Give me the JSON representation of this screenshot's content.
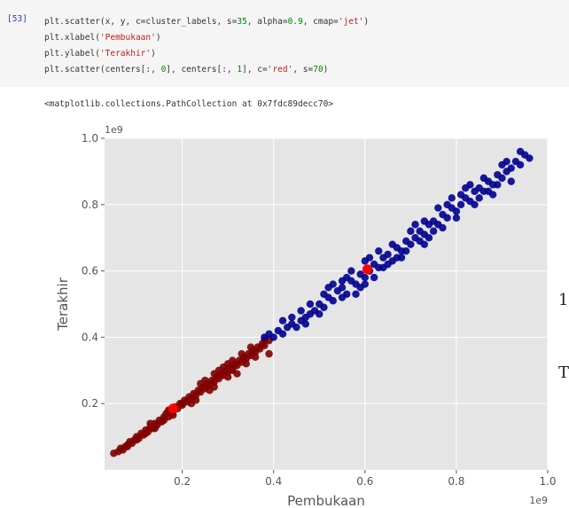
{
  "cell": {
    "prompt": "[53]",
    "lines": [
      [
        {
          "t": "plt.scatter(x, y, c=cluster_labels, s="
        },
        {
          "t": "35",
          "c": "num"
        },
        {
          "t": ", alpha="
        },
        {
          "t": "0.9",
          "c": "num"
        },
        {
          "t": ", cmap="
        },
        {
          "t": "'jet'",
          "c": "str"
        },
        {
          "t": ")"
        }
      ],
      [
        {
          "t": "plt.xlabel("
        },
        {
          "t": "'Pembukaan'",
          "c": "str"
        },
        {
          "t": ")"
        }
      ],
      [
        {
          "t": "plt.ylabel("
        },
        {
          "t": "'Terakhir'",
          "c": "str"
        },
        {
          "t": ")"
        }
      ],
      [
        {
          "t": "plt.scatter(centers[:, "
        },
        {
          "t": "0",
          "c": "num"
        },
        {
          "t": "], centers[:, "
        },
        {
          "t": "1",
          "c": "num"
        },
        {
          "t": "], c="
        },
        {
          "t": "'red'",
          "c": "str"
        },
        {
          "t": ", s="
        },
        {
          "t": "70",
          "c": "num"
        },
        {
          "t": ")"
        }
      ]
    ]
  },
  "output": {
    "text": "<matplotlib.collections.PathCollection at 0x7fdc89decc70>"
  },
  "side_fragments": [
    "1",
    "T"
  ],
  "chart_data": {
    "type": "scatter",
    "xlabel": "Pembukaan",
    "ylabel": "Terakhir",
    "x_offset_label": "1e9",
    "y_offset_label": "1e9",
    "xlim": [
      0.03,
      1.0
    ],
    "ylim": [
      0.0,
      1.0
    ],
    "xticks": [
      0.2,
      0.4,
      0.6,
      0.8,
      1.0
    ],
    "xtick_labels": [
      "0.2",
      "0.4",
      "0.6",
      "0.8",
      "1.0"
    ],
    "yticks": [
      0.2,
      0.4,
      0.6,
      0.8,
      1.0
    ],
    "ytick_labels": [
      "0.2",
      "0.4",
      "0.6",
      "0.8",
      "1.0"
    ],
    "grid": true,
    "background": "#e5e5e5",
    "series": [
      {
        "color": "#7f0000",
        "points": [
          [
            0.05,
            0.05
          ],
          [
            0.06,
            0.055
          ],
          [
            0.065,
            0.065
          ],
          [
            0.07,
            0.06
          ],
          [
            0.075,
            0.07
          ],
          [
            0.08,
            0.075
          ],
          [
            0.085,
            0.085
          ],
          [
            0.09,
            0.08
          ],
          [
            0.095,
            0.09
          ],
          [
            0.1,
            0.1
          ],
          [
            0.105,
            0.095
          ],
          [
            0.11,
            0.11
          ],
          [
            0.115,
            0.105
          ],
          [
            0.12,
            0.12
          ],
          [
            0.125,
            0.115
          ],
          [
            0.13,
            0.13
          ],
          [
            0.135,
            0.125
          ],
          [
            0.14,
            0.14
          ],
          [
            0.145,
            0.135
          ],
          [
            0.15,
            0.15
          ],
          [
            0.155,
            0.145
          ],
          [
            0.16,
            0.16
          ],
          [
            0.165,
            0.17
          ],
          [
            0.17,
            0.16
          ],
          [
            0.175,
            0.18
          ],
          [
            0.18,
            0.175
          ],
          [
            0.185,
            0.19
          ],
          [
            0.19,
            0.185
          ],
          [
            0.195,
            0.2
          ],
          [
            0.2,
            0.195
          ],
          [
            0.205,
            0.21
          ],
          [
            0.21,
            0.205
          ],
          [
            0.215,
            0.22
          ],
          [
            0.22,
            0.215
          ],
          [
            0.225,
            0.23
          ],
          [
            0.23,
            0.225
          ],
          [
            0.235,
            0.24
          ],
          [
            0.24,
            0.235
          ],
          [
            0.245,
            0.25
          ],
          [
            0.25,
            0.245
          ],
          [
            0.255,
            0.26
          ],
          [
            0.26,
            0.255
          ],
          [
            0.265,
            0.27
          ],
          [
            0.27,
            0.265
          ],
          [
            0.275,
            0.28
          ],
          [
            0.28,
            0.275
          ],
          [
            0.285,
            0.29
          ],
          [
            0.29,
            0.285
          ],
          [
            0.295,
            0.3
          ],
          [
            0.3,
            0.295
          ],
          [
            0.305,
            0.31
          ],
          [
            0.31,
            0.305
          ],
          [
            0.315,
            0.32
          ],
          [
            0.32,
            0.315
          ],
          [
            0.325,
            0.33
          ],
          [
            0.33,
            0.325
          ],
          [
            0.335,
            0.34
          ],
          [
            0.34,
            0.335
          ],
          [
            0.345,
            0.35
          ],
          [
            0.35,
            0.345
          ],
          [
            0.355,
            0.36
          ],
          [
            0.36,
            0.355
          ],
          [
            0.365,
            0.37
          ],
          [
            0.37,
            0.365
          ],
          [
            0.375,
            0.38
          ],
          [
            0.38,
            0.375
          ],
          [
            0.39,
            0.39
          ],
          [
            0.2,
            0.2
          ],
          [
            0.23,
            0.21
          ],
          [
            0.24,
            0.26
          ],
          [
            0.27,
            0.29
          ],
          [
            0.29,
            0.31
          ],
          [
            0.31,
            0.33
          ],
          [
            0.32,
            0.29
          ],
          [
            0.34,
            0.32
          ],
          [
            0.35,
            0.37
          ],
          [
            0.28,
            0.3
          ],
          [
            0.26,
            0.24
          ],
          [
            0.22,
            0.2
          ],
          [
            0.18,
            0.165
          ],
          [
            0.16,
            0.15
          ],
          [
            0.14,
            0.125
          ],
          [
            0.12,
            0.11
          ],
          [
            0.1,
            0.09
          ],
          [
            0.08,
            0.07
          ],
          [
            0.13,
            0.14
          ],
          [
            0.17,
            0.18
          ],
          [
            0.25,
            0.27
          ],
          [
            0.3,
            0.28
          ],
          [
            0.33,
            0.35
          ],
          [
            0.36,
            0.34
          ],
          [
            0.38,
            0.39
          ],
          [
            0.3,
            0.32
          ],
          [
            0.27,
            0.25
          ],
          [
            0.31,
            0.3
          ],
          [
            0.39,
            0.35
          ]
        ]
      },
      {
        "color": "#00008f",
        "points": [
          [
            0.38,
            0.4
          ],
          [
            0.39,
            0.41
          ],
          [
            0.4,
            0.4
          ],
          [
            0.41,
            0.42
          ],
          [
            0.42,
            0.41
          ],
          [
            0.43,
            0.43
          ],
          [
            0.44,
            0.44
          ],
          [
            0.45,
            0.43
          ],
          [
            0.46,
            0.45
          ],
          [
            0.47,
            0.46
          ],
          [
            0.48,
            0.47
          ],
          [
            0.49,
            0.48
          ],
          [
            0.5,
            0.5
          ],
          [
            0.51,
            0.49
          ],
          [
            0.52,
            0.52
          ],
          [
            0.53,
            0.51
          ],
          [
            0.54,
            0.54
          ],
          [
            0.55,
            0.55
          ],
          [
            0.56,
            0.53
          ],
          [
            0.57,
            0.57
          ],
          [
            0.58,
            0.56
          ],
          [
            0.59,
            0.59
          ],
          [
            0.6,
            0.58
          ],
          [
            0.61,
            0.6
          ],
          [
            0.62,
            0.62
          ],
          [
            0.63,
            0.61
          ],
          [
            0.64,
            0.64
          ],
          [
            0.65,
            0.65
          ],
          [
            0.66,
            0.63
          ],
          [
            0.67,
            0.67
          ],
          [
            0.68,
            0.66
          ],
          [
            0.69,
            0.69
          ],
          [
            0.7,
            0.68
          ],
          [
            0.71,
            0.7
          ],
          [
            0.72,
            0.72
          ],
          [
            0.73,
            0.71
          ],
          [
            0.74,
            0.74
          ],
          [
            0.75,
            0.75
          ],
          [
            0.76,
            0.74
          ],
          [
            0.77,
            0.77
          ],
          [
            0.78,
            0.76
          ],
          [
            0.79,
            0.79
          ],
          [
            0.8,
            0.78
          ],
          [
            0.81,
            0.8
          ],
          [
            0.82,
            0.82
          ],
          [
            0.83,
            0.81
          ],
          [
            0.84,
            0.84
          ],
          [
            0.85,
            0.85
          ],
          [
            0.86,
            0.84
          ],
          [
            0.87,
            0.87
          ],
          [
            0.88,
            0.86
          ],
          [
            0.89,
            0.89
          ],
          [
            0.9,
            0.88
          ],
          [
            0.91,
            0.9
          ],
          [
            0.92,
            0.91
          ],
          [
            0.93,
            0.93
          ],
          [
            0.94,
            0.92
          ],
          [
            0.95,
            0.95
          ],
          [
            0.96,
            0.94
          ],
          [
            0.44,
            0.46
          ],
          [
            0.47,
            0.44
          ],
          [
            0.5,
            0.47
          ],
          [
            0.52,
            0.55
          ],
          [
            0.55,
            0.52
          ],
          [
            0.57,
            0.6
          ],
          [
            0.58,
            0.53
          ],
          [
            0.6,
            0.63
          ],
          [
            0.62,
            0.58
          ],
          [
            0.64,
            0.61
          ],
          [
            0.66,
            0.68
          ],
          [
            0.68,
            0.64
          ],
          [
            0.7,
            0.72
          ],
          [
            0.72,
            0.69
          ],
          [
            0.74,
            0.7
          ],
          [
            0.76,
            0.79
          ],
          [
            0.78,
            0.8
          ],
          [
            0.8,
            0.76
          ],
          [
            0.82,
            0.85
          ],
          [
            0.84,
            0.8
          ],
          [
            0.86,
            0.88
          ],
          [
            0.88,
            0.83
          ],
          [
            0.9,
            0.92
          ],
          [
            0.92,
            0.87
          ],
          [
            0.94,
            0.96
          ],
          [
            0.46,
            0.48
          ],
          [
            0.53,
            0.56
          ],
          [
            0.56,
            0.58
          ],
          [
            0.61,
            0.64
          ],
          [
            0.65,
            0.62
          ],
          [
            0.69,
            0.66
          ],
          [
            0.73,
            0.75
          ],
          [
            0.77,
            0.73
          ],
          [
            0.81,
            0.83
          ],
          [
            0.85,
            0.82
          ],
          [
            0.89,
            0.86
          ],
          [
            0.42,
            0.45
          ],
          [
            0.48,
            0.5
          ],
          [
            0.51,
            0.53
          ],
          [
            0.59,
            0.55
          ],
          [
            0.63,
            0.66
          ],
          [
            0.67,
            0.64
          ],
          [
            0.71,
            0.74
          ],
          [
            0.75,
            0.72
          ],
          [
            0.79,
            0.82
          ],
          [
            0.83,
            0.86
          ],
          [
            0.87,
            0.84
          ],
          [
            0.91,
            0.93
          ],
          [
            0.6,
            0.56
          ],
          [
            0.73,
            0.68
          ],
          [
            0.55,
            0.57
          ]
        ]
      },
      {
        "color": "#ff0000",
        "size": "large",
        "points": [
          [
            0.18,
            0.185
          ],
          [
            0.605,
            0.605
          ]
        ]
      }
    ]
  }
}
